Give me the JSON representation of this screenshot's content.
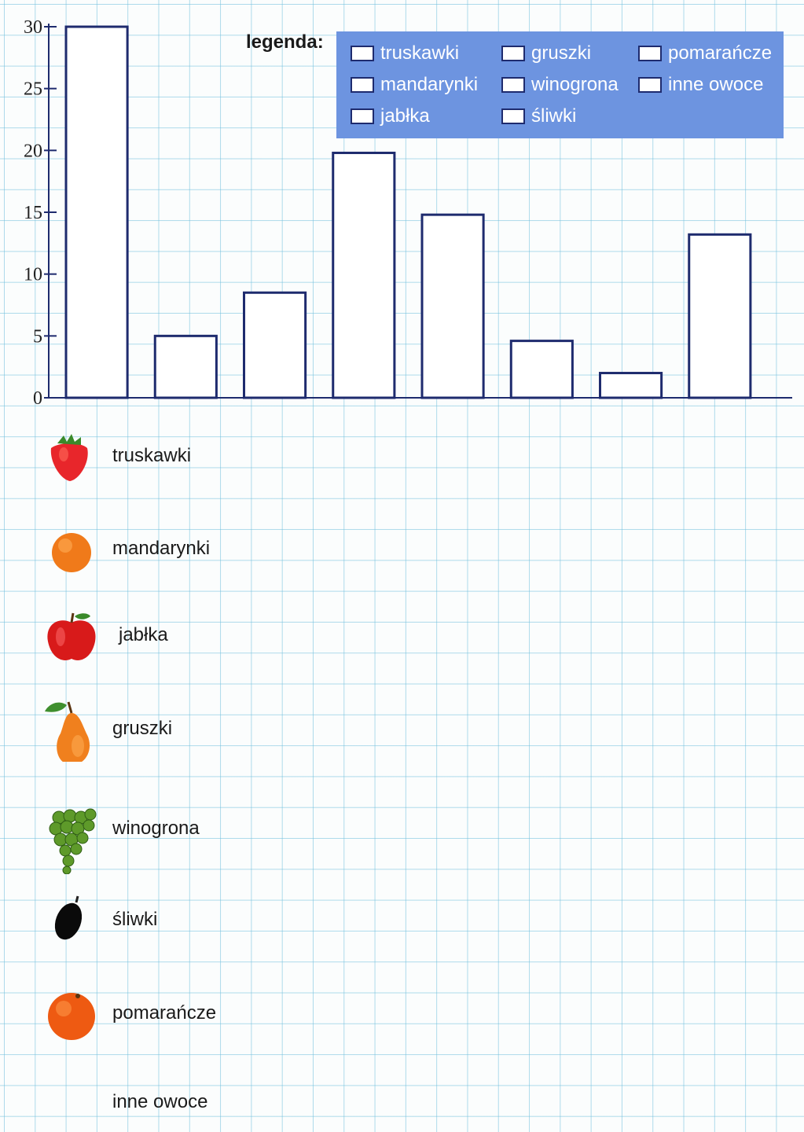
{
  "chart_data": {
    "type": "bar",
    "categories": [
      "truskawki",
      "mandarynki",
      "jabłka",
      "gruszki",
      "winogrona",
      "śliwki",
      "pomarańcze",
      "inne owoce"
    ],
    "values": [
      30,
      5,
      8.5,
      19.8,
      14.8,
      4.6,
      2,
      13.2
    ],
    "ylim": [
      0,
      30
    ],
    "yticks": [
      "0",
      "5",
      "10",
      "15",
      "20",
      "25",
      "30"
    ],
    "bar_fill": "#ffffff",
    "bar_stroke": "#1e2b6e",
    "grid": true
  },
  "legend": {
    "title": "legenda:",
    "background": "#6d94e0",
    "items": [
      "truskawki",
      "mandarynki",
      "jabłka",
      "gruszki",
      "winogrona",
      "śliwki",
      "pomarańcze",
      "inne owoce"
    ]
  },
  "fruit_list": [
    {
      "label": "truskawki",
      "icon": "strawberry-icon"
    },
    {
      "label": "mandarynki",
      "icon": "tangerine-icon"
    },
    {
      "label": "jabłka",
      "icon": "apple-icon"
    },
    {
      "label": "gruszki",
      "icon": "pear-icon"
    },
    {
      "label": "winogrona",
      "icon": "grapes-icon"
    },
    {
      "label": "śliwki",
      "icon": "plum-icon"
    },
    {
      "label": "pomarańcze",
      "icon": "orange-icon"
    },
    {
      "label": "inne owoce",
      "icon": ""
    }
  ]
}
